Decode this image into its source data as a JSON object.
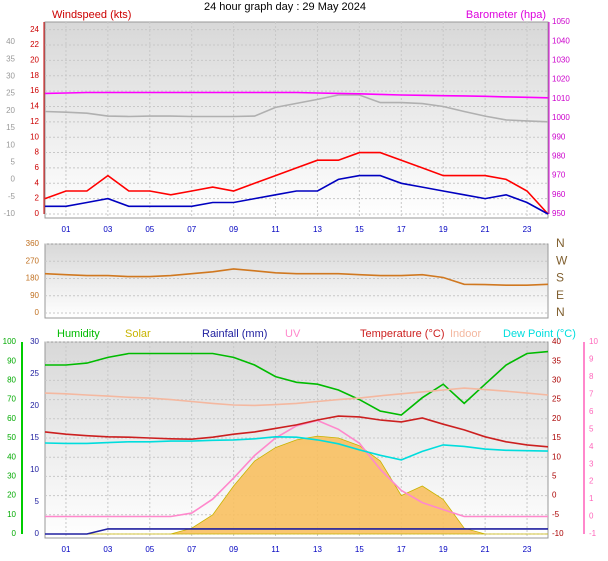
{
  "chart_data": [
    {
      "type": "line",
      "title": "24 hour graph day : 29 May 2024",
      "ylabel": "Windspeed (kts)",
      "y2label": "Barometer (hpa)",
      "x": [
        0,
        1,
        2,
        3,
        4,
        5,
        6,
        7,
        8,
        9,
        10,
        11,
        12,
        13,
        14,
        15,
        16,
        17,
        18,
        19,
        20,
        21,
        22,
        23,
        24
      ],
      "xlim": [
        0,
        24
      ],
      "xticks": [
        {
          "value": 1,
          "label": "01"
        },
        {
          "value": 3,
          "label": "03"
        },
        {
          "value": 5,
          "label": "05"
        },
        {
          "value": 7,
          "label": "07"
        },
        {
          "value": 9,
          "label": "09"
        },
        11,
        13,
        15,
        17,
        19,
        21,
        23
      ],
      "ylim": [
        0,
        25
      ],
      "yticks": [
        0,
        2,
        4,
        6,
        8,
        10,
        12,
        14,
        16,
        18,
        20,
        22,
        24
      ],
      "y2lim": [
        950,
        1050
      ],
      "y2ticks": [
        950,
        960,
        970,
        980,
        990,
        1000,
        1010,
        1020,
        1030,
        1040,
        1050
      ],
      "y3lim": [
        -10,
        45.8
      ],
      "y3ticks": [
        -10,
        -5,
        0,
        5,
        10,
        15,
        20,
        25,
        30,
        35,
        40
      ],
      "grid": true,
      "series": [
        {
          "color": "#b0b0b0",
          "axis": "y2",
          "values": [
            1003.4,
            1003,
            1002.5,
            1001,
            1000.8,
            1001,
            1001,
            1000.8,
            1000.8,
            1000.8,
            1001,
            1005.5,
            1007.6,
            1009.7,
            1012,
            1012,
            1008,
            1008,
            1007.5,
            1006,
            1003.4,
            1001,
            999,
            998.5,
            998
          ]
        },
        {
          "color": "#ff00ff",
          "axis": "y2",
          "values": [
            1012.8,
            1013,
            1013.3,
            1013.3,
            1013.3,
            1013.3,
            1013.3,
            1013.3,
            1013.3,
            1013.3,
            1013.3,
            1013.3,
            1013.3,
            1013,
            1012.8,
            1012.6,
            1012.3,
            1012,
            1011.8,
            1011.6,
            1011.5,
            1011.3,
            1011,
            1010.8,
            1010.5
          ]
        },
        {
          "color": "#ff0000",
          "values": [
            2,
            3,
            3,
            5,
            3,
            3,
            2.5,
            3,
            3.5,
            3,
            4,
            5,
            6,
            7,
            7,
            8,
            8,
            7,
            6,
            5,
            5,
            5,
            4.5,
            3,
            0
          ]
        },
        {
          "color": "#0000c0",
          "values": [
            1,
            1,
            1.5,
            2,
            1,
            1,
            1,
            1,
            1.5,
            1.5,
            2,
            2.5,
            3,
            3,
            4.5,
            5,
            5,
            4,
            3.5,
            3,
            2.5,
            2,
            2.5,
            1.5,
            0
          ]
        }
      ]
    },
    {
      "type": "line",
      "x": [
        0,
        1,
        2,
        3,
        4,
        5,
        6,
        7,
        8,
        9,
        10,
        11,
        12,
        13,
        14,
        15,
        16,
        17,
        18,
        19,
        20,
        21,
        22,
        23,
        24
      ],
      "xlim": [
        0,
        24
      ],
      "ylim": [
        0,
        360
      ],
      "yticks": [
        0,
        90,
        180,
        270,
        360
      ],
      "y2ticks": [
        {
          "value": 0,
          "label": "N"
        },
        {
          "value": 90,
          "label": "E"
        },
        {
          "value": 180,
          "label": "S"
        },
        {
          "value": 270,
          "label": "W"
        },
        {
          "value": 360,
          "label": "N"
        }
      ],
      "grid": true,
      "series": [
        {
          "color": "#d07820",
          "values": [
            205,
            200,
            195,
            195,
            190,
            190,
            195,
            205,
            215,
            230,
            220,
            210,
            205,
            205,
            205,
            200,
            195,
            195,
            200,
            185,
            150,
            148,
            145,
            145,
            150
          ]
        }
      ]
    },
    {
      "type": "line",
      "x": [
        0,
        1,
        2,
        3,
        4,
        5,
        6,
        7,
        8,
        9,
        10,
        11,
        12,
        13,
        14,
        15,
        16,
        17,
        18,
        19,
        20,
        21,
        22,
        23,
        24
      ],
      "xlim": [
        0,
        24
      ],
      "xticks": [
        {
          "value": 1,
          "label": "01"
        },
        {
          "value": 3,
          "label": "03"
        },
        {
          "value": 5,
          "label": "05"
        },
        {
          "value": 7,
          "label": "07"
        },
        {
          "value": 9,
          "label": "09"
        },
        11,
        13,
        15,
        17,
        19,
        21,
        23
      ],
      "ylim": [
        0,
        100
      ],
      "yticks": [
        0,
        10,
        20,
        30,
        40,
        50,
        60,
        70,
        80,
        90,
        100
      ],
      "y2lim": [
        -10,
        40
      ],
      "y2ticks": [
        -10,
        -5,
        0,
        5,
        10,
        15,
        20,
        25,
        30,
        35,
        40
      ],
      "y3lim": [
        0,
        30
      ],
      "y3ticks": [
        0,
        5,
        10,
        15,
        20,
        25,
        30
      ],
      "y4lim": [
        -1,
        10
      ],
      "y4ticks": [
        -1,
        0,
        1,
        2,
        3,
        4,
        5,
        6,
        7,
        8,
        9,
        10
      ],
      "grid": true,
      "series": [
        {
          "name": "Solar",
          "color": "#c8b400",
          "fill": "#f8c060",
          "area": true,
          "values": [
            0,
            0,
            0,
            0,
            0,
            0,
            0,
            3,
            10,
            25,
            38,
            45,
            49,
            51,
            50,
            46,
            38,
            20,
            25,
            18,
            3,
            0,
            0,
            0,
            0
          ]
        },
        {
          "name": "Humidity",
          "color": "#00bb00",
          "values": [
            88,
            88,
            89,
            92,
            94,
            94,
            94,
            94,
            94,
            92,
            88,
            82,
            79,
            78,
            75,
            70,
            64,
            62,
            71,
            78,
            68,
            78,
            88,
            94,
            95
          ]
        },
        {
          "name": "Rainfall (mm)",
          "color": "#2020a0",
          "axis": "y3",
          "values": [
            0,
            0,
            0,
            0.8,
            0.8,
            0.8,
            0.8,
            0.8,
            0.8,
            0.8,
            0.8,
            0.8,
            0.8,
            0.8,
            0.8,
            0.8,
            0.8,
            0.8,
            0.8,
            0.8,
            0.8,
            0.8,
            0.8,
            0.8,
            0.8
          ]
        },
        {
          "name": "UV",
          "color": "#ff88cc",
          "axis": "y4",
          "values": [
            0,
            0,
            0,
            0,
            0,
            0,
            0,
            0.2,
            1,
            2.2,
            3.5,
            4.5,
            5.2,
            5.5,
            5,
            4.2,
            2.7,
            1.5,
            0.8,
            0.4,
            0,
            0,
            0,
            0,
            0
          ]
        },
        {
          "name": "Temperature (°C)",
          "color": "#cc2020",
          "axis": "y2",
          "values": [
            16.6,
            16,
            15.6,
            15.3,
            15.2,
            15,
            14.8,
            14.7,
            15.2,
            16,
            16.6,
            17.5,
            18.4,
            19.7,
            20.7,
            20.5,
            19.7,
            19.2,
            20.2,
            18.6,
            17.1,
            15.3,
            14,
            13.2,
            12.7
          ]
        },
        {
          "name": "Indoor",
          "color": "#f4b8a0",
          "axis": "y2",
          "values": [
            26.7,
            26.5,
            26.2,
            25.9,
            25.6,
            25.4,
            25,
            24.5,
            24,
            23.6,
            23.5,
            23.7,
            24,
            24.5,
            25,
            25.4,
            26,
            26.5,
            27,
            27.5,
            28,
            27.6,
            27.2,
            26.7,
            26.2
          ]
        },
        {
          "name": "Dew Point (°C)",
          "color": "#00dddd",
          "axis": "y2",
          "values": [
            13.7,
            13.6,
            13.6,
            13.8,
            14,
            14,
            14.2,
            14.2,
            14.4,
            14.5,
            14.8,
            15.3,
            15.2,
            14.5,
            13.5,
            11.9,
            10.5,
            9.3,
            11.5,
            13.2,
            12.8,
            12.1,
            11.8,
            11.7,
            11.6
          ]
        }
      ]
    }
  ]
}
